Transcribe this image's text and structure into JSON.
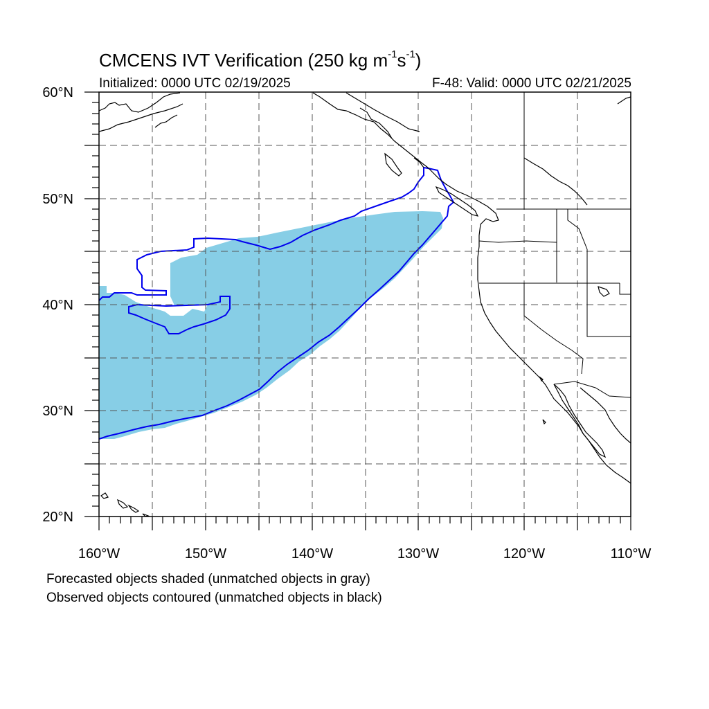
{
  "title": {
    "main": "CMCENS IVT Verification (250 kg m",
    "sup1": "-1",
    "mid": "s",
    "sup2": "-1",
    "close": ")"
  },
  "subtitle_left": "Initialized: 0000 UTC 02/19/2025",
  "subtitle_right": "F-48: Valid: 0000 UTC 02/21/2025",
  "notes": {
    "line1": "Forecasted objects shaded (unmatched objects in gray)",
    "line2": "Observed objects contoured (unmatched objects in black)"
  },
  "map": {
    "lon_range": [
      -160,
      -110
    ],
    "lat_range": [
      20,
      60
    ],
    "lon_labels": [
      "160°W",
      "150°W",
      "140°W",
      "130°W",
      "120°W",
      "110°W"
    ],
    "lat_labels": [
      "20°N",
      "30°N",
      "40°N",
      "50°N",
      "60°N"
    ],
    "grid_lon_step": 5,
    "grid_lat_step": 5,
    "gridlines": "dashed",
    "colors": {
      "forecast_fill": "#87CEE6",
      "observed_contour": "#0000EE",
      "coastline": "#000000",
      "grid": "#555555"
    }
  }
}
